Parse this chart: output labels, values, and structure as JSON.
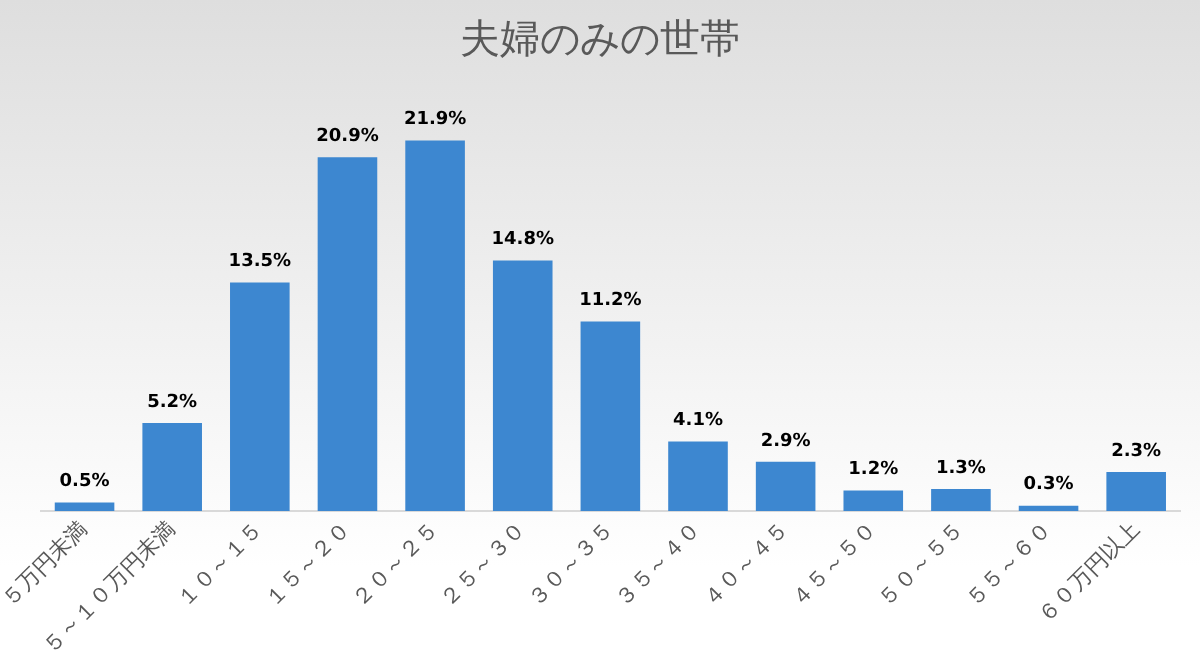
{
  "chart_data": {
    "type": "bar",
    "title": "夫婦のみの世帯",
    "categories": [
      "５万円未満",
      "５～１０万円未満",
      "１０～１５",
      "１５～２０",
      "２０～２５",
      "２５～３０",
      "３０～３５",
      "３５～４０",
      "４０～４５",
      "４５～５０",
      "５０～５５",
      "５５～６０",
      "６０万円以上"
    ],
    "values": [
      0.5,
      5.2,
      13.5,
      20.9,
      21.9,
      14.8,
      11.2,
      4.1,
      2.9,
      1.2,
      1.3,
      0.3,
      2.3
    ],
    "value_labels": [
      "0.5%",
      "5.2%",
      "13.5%",
      "20.9%",
      "21.9%",
      "14.8%",
      "11.2%",
      "4.1%",
      "2.9%",
      "1.2%",
      "1.3%",
      "0.3%",
      "2.3%"
    ],
    "color": "#3d87d0",
    "grid": false,
    "legend": false
  }
}
